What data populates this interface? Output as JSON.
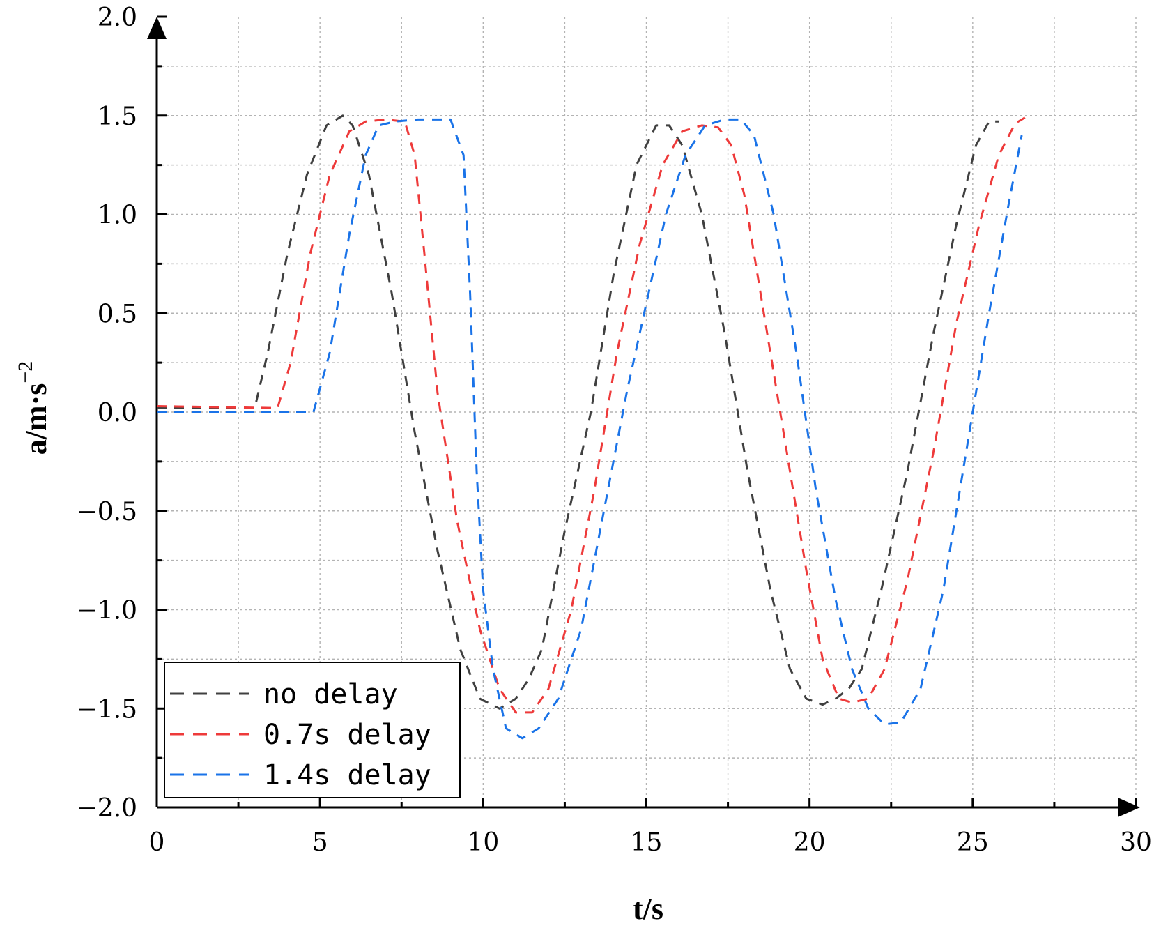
{
  "chart_data": {
    "type": "line",
    "xlabel": "t/s",
    "ylabel": "a/m·s",
    "ylabel_sup": "−2",
    "xlim": [
      0,
      30
    ],
    "ylim": [
      -2.0,
      2.0
    ],
    "x_ticks": [
      "0",
      "5",
      "10",
      "15",
      "20",
      "25",
      "30"
    ],
    "y_ticks": [
      "−2.0",
      "−1.5",
      "−1.0",
      "−0.5",
      "0.0",
      "0.5",
      "1.0",
      "1.5",
      "2.0"
    ],
    "grid": true,
    "legend_position": "bottom-left",
    "series": [
      {
        "name": "no delay",
        "color": "#404040",
        "x": [
          0,
          3.0,
          3.4,
          4.0,
          4.6,
          5.2,
          5.7,
          6.0,
          6.5,
          7.2,
          7.9,
          8.6,
          9.3,
          9.9,
          10.5,
          11.0,
          11.4,
          11.8,
          12.5,
          13.3,
          14.0,
          14.7,
          15.3,
          15.7,
          16.1,
          16.7,
          17.4,
          18.1,
          18.8,
          19.4,
          19.9,
          20.4,
          20.8,
          21.2,
          21.6,
          22.2,
          23.0,
          23.8,
          24.5,
          25.1,
          25.5,
          25.8
        ],
        "y": [
          0.02,
          0.02,
          0.3,
          0.8,
          1.2,
          1.45,
          1.5,
          1.45,
          1.2,
          0.6,
          -0.1,
          -0.7,
          -1.2,
          -1.45,
          -1.5,
          -1.45,
          -1.35,
          -1.2,
          -0.6,
          0.0,
          0.7,
          1.25,
          1.45,
          1.45,
          1.35,
          1.0,
          0.4,
          -0.3,
          -0.9,
          -1.3,
          -1.45,
          -1.48,
          -1.45,
          -1.4,
          -1.3,
          -0.9,
          -0.3,
          0.4,
          0.95,
          1.35,
          1.47,
          1.47
        ]
      },
      {
        "name": "0.7s delay",
        "color": "#ee3a3a",
        "x": [
          0,
          3.7,
          4.1,
          4.7,
          5.3,
          5.9,
          6.4,
          7.0,
          7.6,
          7.9,
          8.2,
          8.6,
          9.2,
          9.9,
          10.5,
          11.0,
          11.5,
          12.0,
          12.7,
          13.4,
          14.1,
          14.8,
          15.5,
          16.1,
          16.7,
          17.2,
          17.6,
          18.0,
          18.6,
          19.3,
          19.9,
          20.4,
          20.9,
          21.3,
          21.8,
          22.3,
          23.0,
          23.8,
          24.5,
          25.2,
          25.8,
          26.3,
          26.6
        ],
        "y": [
          0.03,
          0.02,
          0.25,
          0.8,
          1.2,
          1.42,
          1.47,
          1.48,
          1.47,
          1.3,
          0.8,
          0.1,
          -0.55,
          -1.1,
          -1.4,
          -1.52,
          -1.52,
          -1.4,
          -1.0,
          -0.4,
          0.3,
          0.85,
          1.25,
          1.42,
          1.45,
          1.44,
          1.35,
          1.1,
          0.5,
          -0.2,
          -0.8,
          -1.25,
          -1.45,
          -1.47,
          -1.45,
          -1.3,
          -0.85,
          -0.2,
          0.45,
          0.95,
          1.3,
          1.46,
          1.49
        ]
      },
      {
        "name": "1.4s delay",
        "color": "#1a73e8",
        "x": [
          0,
          4.8,
          5.3,
          5.9,
          6.4,
          6.8,
          7.3,
          8.0,
          9.0,
          9.4,
          9.6,
          9.8,
          10.0,
          10.3,
          10.7,
          11.2,
          11.7,
          12.3,
          13.0,
          13.7,
          14.4,
          15.0,
          15.6,
          16.2,
          16.8,
          17.4,
          17.9,
          18.3,
          18.9,
          19.6,
          20.2,
          20.8,
          21.3,
          21.8,
          22.3,
          22.8,
          23.4,
          24.1,
          24.8,
          25.5,
          26.1,
          26.5
        ],
        "y": [
          0.0,
          0.0,
          0.3,
          0.9,
          1.3,
          1.45,
          1.47,
          1.48,
          1.48,
          1.3,
          0.6,
          -0.3,
          -0.9,
          -1.3,
          -1.6,
          -1.65,
          -1.6,
          -1.45,
          -1.1,
          -0.5,
          0.1,
          0.55,
          1.0,
          1.3,
          1.45,
          1.48,
          1.48,
          1.4,
          1.0,
          0.3,
          -0.4,
          -0.95,
          -1.3,
          -1.5,
          -1.58,
          -1.57,
          -1.4,
          -0.9,
          -0.2,
          0.5,
          1.05,
          1.4
        ]
      }
    ]
  }
}
